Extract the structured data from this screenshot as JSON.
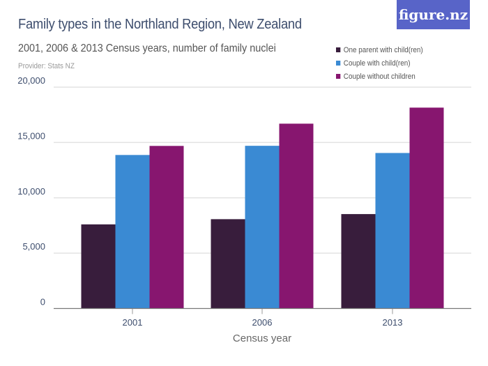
{
  "header": {
    "title": "Family types in the Northland Region, New Zealand",
    "subtitle": "2001, 2006 & 2013 Census years, number of family nuclei",
    "provider": "Provider: Stats NZ",
    "logo": "figure.nz",
    "logo_color": "#5864c8"
  },
  "chart_data": {
    "type": "bar",
    "title": "Family types in the Northland Region, New Zealand",
    "subtitle": "2001, 2006 & 2013 Census years, number of family nuclei",
    "xlabel": "Census year",
    "ylabel": "",
    "categories": [
      "2001",
      "2006",
      "2013"
    ],
    "ylim": [
      0,
      20000
    ],
    "yticks": [
      0,
      5000,
      10000,
      15000,
      20000
    ],
    "ytick_labels": [
      "0",
      "5,000",
      "10,000",
      "15,000",
      "20,000"
    ],
    "grid": true,
    "legend_position": "top-right",
    "series": [
      {
        "name": "One parent with child(ren)",
        "color": "#381d3c",
        "values": [
          7600,
          8070,
          8530
        ]
      },
      {
        "name": "Couple with child(ren)",
        "color": "#3a8ad3",
        "values": [
          13870,
          14700,
          14050
        ]
      },
      {
        "name": "Couple without children",
        "color": "#87166f",
        "values": [
          14690,
          16700,
          18150
        ]
      }
    ]
  }
}
